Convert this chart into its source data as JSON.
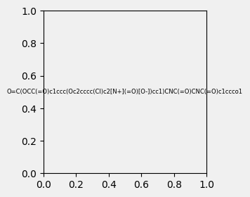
{
  "smiles": "O=C(OCC(=O)c1ccc(Oc2cccc(Cl)c2[N+](=O)[O-])cc1)CNC(=O)CNC(=O)c1ccco1",
  "img_size": [
    300,
    300
  ],
  "background": "#f0f0f0"
}
